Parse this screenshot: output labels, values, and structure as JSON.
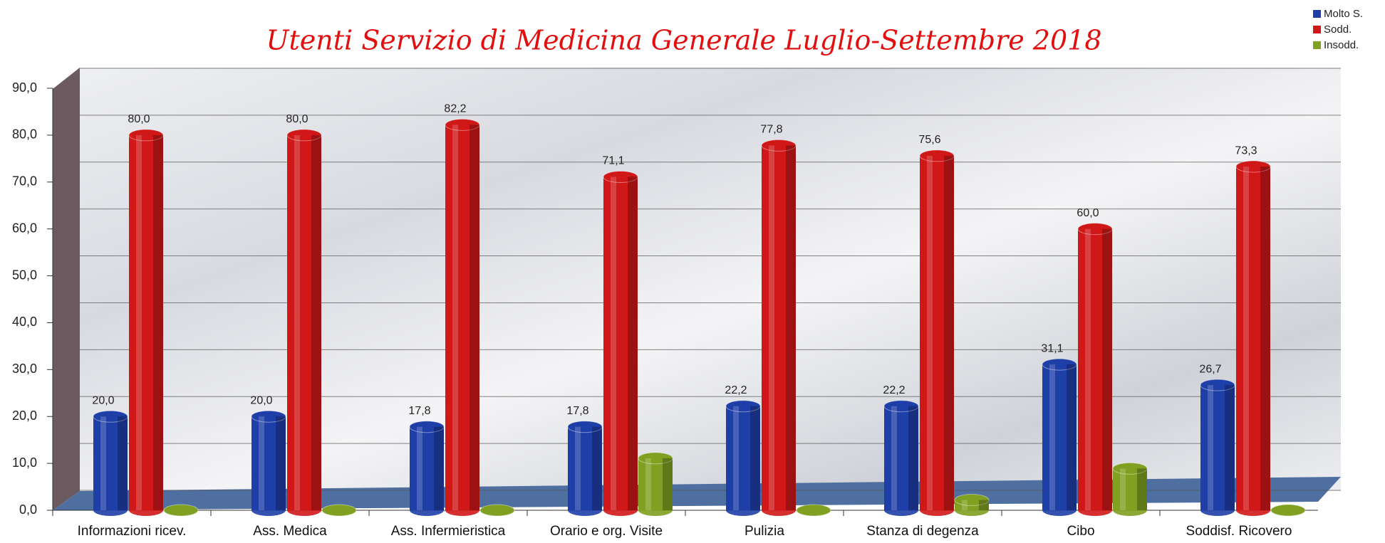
{
  "chart_data": {
    "type": "bar3d",
    "title": "Utenti Servizio di Medicina Generale Luglio-Settembre 2018",
    "categories": [
      "Informazioni ricev.",
      "Ass. Medica",
      "Ass. Infermieristica",
      "Orario e org. Visite",
      "Pulizia",
      "Stanza di degenza",
      "Cibo",
      "Soddisf. Ricovero"
    ],
    "series": [
      {
        "name": "Molto S.",
        "color": "#1f3fa8",
        "values": [
          20.0,
          20.0,
          17.8,
          17.8,
          22.2,
          22.2,
          31.1,
          26.7
        ],
        "value_labels": [
          "20,0",
          "20,0",
          "17,8",
          "17,8",
          "22,2",
          "22,2",
          "31,1",
          "26,7"
        ]
      },
      {
        "name": "Sodd.",
        "color": "#d01818",
        "values": [
          80.0,
          80.0,
          82.2,
          71.1,
          77.8,
          75.6,
          60.0,
          73.3
        ],
        "value_labels": [
          "80,0",
          "80,0",
          "82,2",
          "71,1",
          "77,8",
          "75,6",
          "60,0",
          "73,3"
        ]
      },
      {
        "name": "Insodd.",
        "color": "#7fa020",
        "values": [
          0,
          0,
          0,
          11.1,
          0,
          2.2,
          8.9,
          0
        ]
      }
    ],
    "ylim": [
      0,
      90
    ],
    "yticks": [
      {
        "value": 0,
        "label": "0,0"
      },
      {
        "value": 10,
        "label": "10,0"
      },
      {
        "value": 20,
        "label": "20,0"
      },
      {
        "value": 30,
        "label": "30,0"
      },
      {
        "value": 40,
        "label": "40,0"
      },
      {
        "value": 50,
        "label": "50,0"
      },
      {
        "value": 60,
        "label": "60,0"
      },
      {
        "value": 70,
        "label": "70,0"
      },
      {
        "value": 80,
        "label": "80,0"
      },
      {
        "value": 90,
        "label": "90,0"
      }
    ],
    "grid": true,
    "legend": "top-right"
  }
}
